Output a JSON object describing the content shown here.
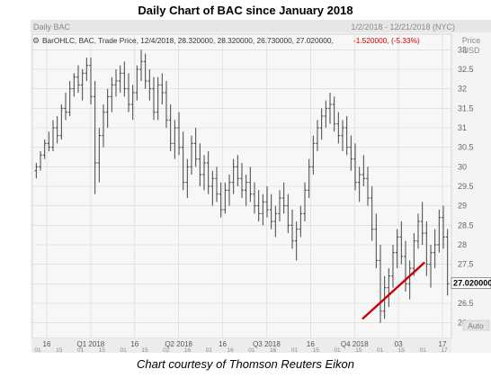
{
  "header": {
    "title": "Daily Chart of BAC since January 2018",
    "window_label": "Daily BAC",
    "date_range": "1/2/2018 - 12/21/2018 (NYC)"
  },
  "legend": {
    "text": "BarOHLC, BAC, Trade Price, 12/4/2018, 28.320000, 28.320000, 26.730000, 27.020000,",
    "change": "-1.520000, (-5.33%)",
    "change_color": "#d40000"
  },
  "axis": {
    "unit_line1": "Price",
    "unit_line2": "USD",
    "last_price": "27.020000",
    "auto_label": "Auto"
  },
  "caption": "Chart courtesy of Thomson Reuters Eikon",
  "chart_data": {
    "type": "ohlc",
    "title": "Daily Chart of BAC since January 2018",
    "ylim": [
      25.6,
      33.4
    ],
    "y_ticks": [
      "26",
      "26.5",
      "27",
      "27.5",
      "28",
      "28.5",
      "29",
      "29.5",
      "30",
      "30.5",
      "31",
      "31.5",
      "32",
      "32.5",
      "33"
    ],
    "x_ticks_top": [
      "16",
      "Q1 2018",
      "16",
      "Q2 2018",
      "16",
      "Q3 2018",
      "16",
      "Q4 2018",
      "03",
      "17"
    ],
    "x_ticks_bottom": [
      "01",
      "15",
      "01",
      "15",
      "01",
      "15",
      "02",
      "16",
      "01",
      "16",
      "01",
      "16",
      "01",
      "15",
      "01",
      "15",
      "01",
      "15",
      "01",
      "17"
    ],
    "last_close": 27.02,
    "trendline": {
      "start": [
        0.79,
        26.1
      ],
      "end": [
        0.94,
        27.55
      ],
      "color": "#cc0000"
    },
    "colors": {
      "bars": "#444444",
      "grid": "#d6d6d6",
      "background": "#f4f4f4",
      "price_label_bg": "#ffffff"
    },
    "series": [
      {
        "values": [
          [
            29.9,
            30.1,
            29.7,
            30.0
          ],
          [
            30.0,
            30.4,
            29.9,
            30.3
          ],
          [
            30.3,
            30.7,
            30.2,
            30.6
          ],
          [
            30.6,
            30.9,
            30.4,
            30.5
          ],
          [
            30.5,
            31.2,
            30.4,
            31.0
          ],
          [
            31.0,
            31.3,
            30.6,
            30.8
          ],
          [
            30.8,
            31.6,
            30.7,
            31.5
          ],
          [
            31.5,
            31.9,
            31.2,
            31.4
          ],
          [
            31.4,
            32.2,
            31.3,
            32.0
          ],
          [
            32.0,
            32.4,
            31.8,
            32.3
          ],
          [
            32.3,
            32.6,
            31.9,
            32.1
          ],
          [
            32.1,
            32.5,
            31.7,
            32.4
          ],
          [
            32.4,
            32.8,
            32.2,
            32.6
          ],
          [
            32.6,
            32.8,
            31.6,
            31.8
          ],
          [
            31.8,
            32.2,
            29.3,
            30.1
          ],
          [
            30.1,
            31.0,
            29.6,
            30.8
          ],
          [
            30.8,
            31.6,
            30.5,
            31.4
          ],
          [
            31.4,
            32.0,
            31.0,
            31.8
          ],
          [
            31.8,
            32.3,
            31.4,
            32.1
          ],
          [
            32.1,
            32.5,
            31.8,
            32.2
          ],
          [
            32.2,
            32.6,
            31.9,
            32.4
          ],
          [
            32.4,
            32.7,
            31.8,
            32.0
          ],
          [
            32.0,
            32.4,
            31.4,
            31.6
          ],
          [
            31.6,
            32.1,
            31.2,
            31.9
          ],
          [
            31.9,
            32.6,
            31.7,
            32.5
          ],
          [
            32.5,
            33.0,
            32.2,
            32.7
          ],
          [
            32.7,
            32.9,
            32.0,
            32.2
          ],
          [
            32.2,
            32.5,
            31.7,
            32.0
          ],
          [
            32.0,
            32.3,
            31.2,
            31.4
          ],
          [
            31.4,
            32.3,
            31.2,
            32.1
          ],
          [
            32.1,
            32.4,
            31.6,
            31.9
          ],
          [
            31.9,
            32.2,
            31.0,
            31.2
          ],
          [
            31.2,
            31.6,
            30.4,
            30.6
          ],
          [
            30.6,
            31.2,
            30.2,
            31.0
          ],
          [
            31.0,
            31.4,
            30.3,
            30.5
          ],
          [
            30.5,
            30.9,
            29.4,
            29.6
          ],
          [
            29.6,
            30.2,
            29.2,
            30.0
          ],
          [
            30.0,
            30.8,
            29.8,
            30.6
          ],
          [
            30.6,
            31.0,
            30.0,
            30.2
          ],
          [
            30.2,
            30.6,
            29.5,
            29.8
          ],
          [
            29.8,
            30.3,
            29.4,
            30.1
          ],
          [
            30.1,
            30.4,
            29.3,
            29.5
          ],
          [
            29.5,
            29.9,
            29.0,
            29.7
          ],
          [
            29.7,
            30.0,
            29.1,
            29.3
          ],
          [
            29.3,
            29.6,
            28.7,
            28.9
          ],
          [
            28.9,
            29.6,
            28.8,
            29.4
          ],
          [
            29.4,
            29.8,
            29.0,
            29.6
          ],
          [
            29.6,
            30.2,
            29.3,
            30.0
          ],
          [
            30.0,
            30.3,
            29.5,
            29.7
          ],
          [
            29.7,
            30.1,
            29.2,
            29.4
          ],
          [
            29.4,
            29.8,
            29.0,
            29.6
          ],
          [
            29.6,
            30.0,
            29.1,
            29.3
          ],
          [
            29.3,
            29.6,
            28.8,
            29.0
          ],
          [
            29.0,
            29.4,
            28.6,
            28.8
          ],
          [
            28.8,
            29.3,
            28.5,
            29.1
          ],
          [
            29.1,
            29.5,
            28.7,
            28.9
          ],
          [
            28.9,
            29.3,
            28.4,
            28.6
          ],
          [
            28.6,
            29.0,
            28.2,
            28.8
          ],
          [
            28.8,
            29.4,
            28.6,
            29.2
          ],
          [
            29.2,
            29.6,
            28.8,
            29.0
          ],
          [
            29.0,
            29.3,
            28.3,
            28.5
          ],
          [
            28.5,
            28.9,
            27.9,
            28.1
          ],
          [
            28.1,
            28.6,
            27.6,
            28.4
          ],
          [
            28.4,
            29.0,
            28.2,
            28.8
          ],
          [
            28.8,
            29.6,
            28.6,
            29.4
          ],
          [
            29.4,
            30.2,
            29.2,
            30.0
          ],
          [
            30.0,
            30.8,
            29.8,
            30.6
          ],
          [
            30.6,
            31.2,
            30.4,
            31.0
          ],
          [
            31.0,
            31.5,
            30.7,
            31.3
          ],
          [
            31.3,
            31.7,
            31.0,
            31.5
          ],
          [
            31.5,
            31.9,
            31.1,
            31.6
          ],
          [
            31.6,
            31.8,
            30.9,
            31.1
          ],
          [
            31.1,
            31.4,
            30.6,
            30.8
          ],
          [
            30.8,
            31.2,
            30.4,
            31.0
          ],
          [
            31.0,
            31.3,
            30.3,
            30.5
          ],
          [
            30.5,
            30.8,
            29.9,
            30.2
          ],
          [
            30.2,
            30.6,
            29.4,
            29.6
          ],
          [
            29.6,
            30.0,
            29.1,
            29.8
          ],
          [
            29.8,
            30.3,
            29.5,
            29.7
          ],
          [
            29.7,
            30.0,
            29.0,
            29.2
          ],
          [
            29.2,
            29.5,
            28.1,
            28.4
          ],
          [
            28.4,
            28.8,
            27.4,
            27.6
          ],
          [
            27.6,
            28.0,
            26.0,
            26.3
          ],
          [
            26.3,
            27.2,
            26.1,
            26.9
          ],
          [
            26.9,
            27.4,
            26.4,
            27.2
          ],
          [
            27.2,
            28.0,
            26.9,
            27.8
          ],
          [
            27.8,
            28.4,
            27.4,
            28.2
          ],
          [
            28.2,
            28.6,
            27.5,
            27.7
          ],
          [
            27.7,
            28.1,
            26.8,
            27.0
          ],
          [
            27.0,
            27.6,
            26.6,
            27.4
          ],
          [
            27.4,
            28.3,
            27.2,
            28.1
          ],
          [
            28.1,
            28.8,
            27.9,
            28.6
          ],
          [
            28.6,
            29.1,
            28.0,
            28.3
          ],
          [
            28.3,
            28.6,
            27.2,
            27.5
          ],
          [
            27.5,
            28.0,
            26.9,
            27.8
          ],
          [
            27.8,
            28.4,
            27.4,
            28.0
          ],
          [
            28.0,
            28.9,
            27.8,
            28.7
          ],
          [
            28.7,
            29.0,
            27.9,
            28.2
          ],
          [
            28.2,
            28.4,
            26.7,
            27.0
          ]
        ]
      }
    ]
  }
}
